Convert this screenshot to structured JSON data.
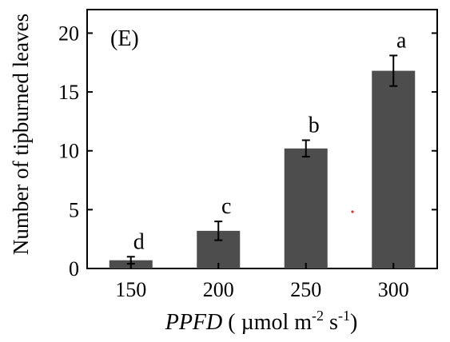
{
  "chart_data": {
    "type": "bar",
    "panel_label": "(E)",
    "categories": [
      "150",
      "200",
      "250",
      "300"
    ],
    "values": [
      0.7,
      3.2,
      10.2,
      16.8
    ],
    "errors": [
      0.3,
      0.8,
      0.7,
      1.3
    ],
    "significance_letters": [
      "d",
      "c",
      "b",
      "a"
    ],
    "ylabel": "Number of tipburned leaves",
    "xlabel": {
      "italic": "PPFD",
      "unit_prefix": " ( µmol m",
      "sup1": "-2",
      "unit_mid": " s",
      "sup2": "-1",
      "unit_suffix": ")"
    },
    "yticks": [
      0,
      5,
      10,
      15,
      20
    ],
    "ylim": [
      0,
      22
    ],
    "grid": false,
    "legend": "none",
    "bar_color": "#4d4d4d",
    "axis_color": "#000000",
    "stray_marker_color": "#e03030"
  }
}
